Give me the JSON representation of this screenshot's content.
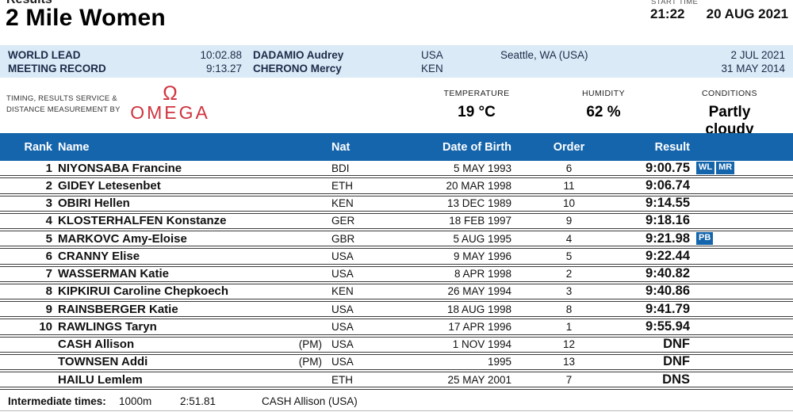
{
  "page": {
    "results_label": "Results",
    "title": "2 Mile Women",
    "start_time_label": "START TIME",
    "start_time": "21:22",
    "date": "20 AUG 2021"
  },
  "records": [
    {
      "label": "WORLD LEAD",
      "time": "10:02.88",
      "athlete": "DADAMIO Audrey",
      "nat": "USA",
      "venue": "Seattle, WA (USA)",
      "date": "2 JUL 2021"
    },
    {
      "label": "MEETING RECORD",
      "time": "9:13.27",
      "athlete": "CHERONO Mercy",
      "nat": "KEN",
      "venue": "",
      "date": "31 MAY 2014"
    }
  ],
  "timing": {
    "provider_label": "TIMING, RESULTS SERVICE & DISTANCE MEASUREMENT BY",
    "omega_symbol": "Ω",
    "provider": "OMEGA",
    "temperature_label": "TEMPERATURE",
    "temperature": "19 °C",
    "humidity_label": "HUMIDITY",
    "humidity": "62 %",
    "conditions_label": "CONDITIONS",
    "conditions": "Partly cloudy"
  },
  "table": {
    "headers": {
      "rank": "Rank",
      "name": "Name",
      "nat": "Nat",
      "dob": "Date of Birth",
      "order": "Order",
      "result": "Result"
    },
    "rows": [
      {
        "rank": "1",
        "name": "NIYONSABA Francine",
        "pm": "",
        "nat": "BDI",
        "dob": "5 MAY 1993",
        "order": "6",
        "result": "9:00.75",
        "badges": [
          "WL",
          "MR"
        ]
      },
      {
        "rank": "2",
        "name": "GIDEY Letesenbet",
        "pm": "",
        "nat": "ETH",
        "dob": "20 MAR 1998",
        "order": "11",
        "result": "9:06.74",
        "badges": []
      },
      {
        "rank": "3",
        "name": "OBIRI Hellen",
        "pm": "",
        "nat": "KEN",
        "dob": "13 DEC 1989",
        "order": "10",
        "result": "9:14.55",
        "badges": []
      },
      {
        "rank": "4",
        "name": "KLOSTERHALFEN Konstanze",
        "pm": "",
        "nat": "GER",
        "dob": "18 FEB 1997",
        "order": "9",
        "result": "9:18.16",
        "badges": []
      },
      {
        "rank": "5",
        "name": "MARKOVC Amy-Eloise",
        "pm": "",
        "nat": "GBR",
        "dob": "5 AUG 1995",
        "order": "4",
        "result": "9:21.98",
        "badges": [
          "PB"
        ]
      },
      {
        "rank": "6",
        "name": "CRANNY Elise",
        "pm": "",
        "nat": "USA",
        "dob": "9 MAY 1996",
        "order": "5",
        "result": "9:22.44",
        "badges": []
      },
      {
        "rank": "7",
        "name": "WASSERMAN Katie",
        "pm": "",
        "nat": "USA",
        "dob": "8 APR 1998",
        "order": "2",
        "result": "9:40.82",
        "badges": []
      },
      {
        "rank": "8",
        "name": "KIPKIRUI Caroline Chepkoech",
        "pm": "",
        "nat": "KEN",
        "dob": "26 MAY 1994",
        "order": "3",
        "result": "9:40.86",
        "badges": []
      },
      {
        "rank": "9",
        "name": "RAINSBERGER Katie",
        "pm": "",
        "nat": "USA",
        "dob": "18 AUG 1998",
        "order": "8",
        "result": "9:41.79",
        "badges": []
      },
      {
        "rank": "10",
        "name": "RAWLINGS Taryn",
        "pm": "",
        "nat": "USA",
        "dob": "17 APR 1996",
        "order": "1",
        "result": "9:55.94",
        "badges": []
      },
      {
        "rank": "",
        "name": "CASH Allison",
        "pm": "(PM)",
        "nat": "USA",
        "dob": "1 NOV 1994",
        "order": "12",
        "result": "DNF",
        "badges": []
      },
      {
        "rank": "",
        "name": "TOWNSEN Addi",
        "pm": "(PM)",
        "nat": "USA",
        "dob": "1995",
        "order": "13",
        "result": "DNF",
        "badges": []
      },
      {
        "rank": "",
        "name": "HAILU Lemlem",
        "pm": "",
        "nat": "ETH",
        "dob": "25 MAY 2001",
        "order": "7",
        "result": "DNS",
        "badges": []
      }
    ]
  },
  "intermediate": {
    "label": "Intermediate times:",
    "distance": "1000m",
    "time": "2:51.81",
    "athlete": "CASH Allison (USA)"
  },
  "colors": {
    "header_blue": "#1565ac",
    "light_blue": "#daeaf6",
    "badge_blue": "#1565ac",
    "omega_red": "#cf333e"
  }
}
